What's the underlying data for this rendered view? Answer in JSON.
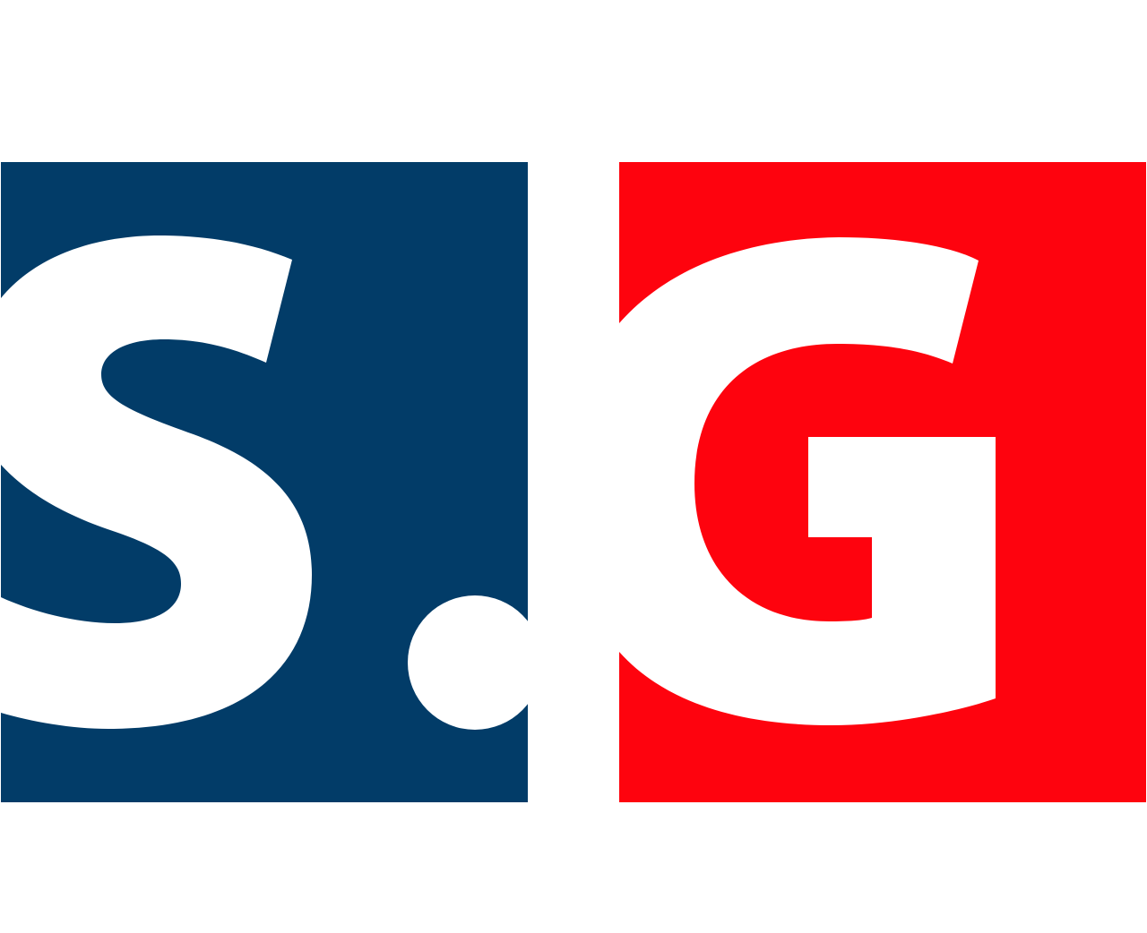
{
  "logo": {
    "letters": [
      "S",
      ".",
      "G"
    ],
    "colors": {
      "left_panel": "#023C68",
      "right_panel": "#FE030E",
      "letters": "#FFFFFF",
      "background": "#FFFFFF"
    }
  }
}
